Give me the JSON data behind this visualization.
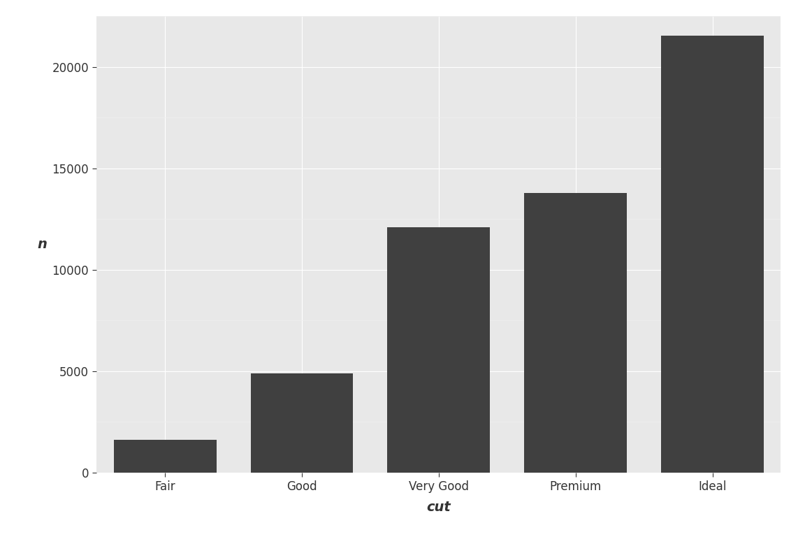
{
  "categories": [
    "Fair",
    "Good",
    "Very Good",
    "Premium",
    "Ideal"
  ],
  "values": [
    1610,
    4906,
    12082,
    13791,
    21551
  ],
  "bar_color": "#404040",
  "figure_background": "#ffffff",
  "panel_background": "#e8e8e8",
  "major_grid_color": "#ffffff",
  "minor_grid_color": "#f0f0f0",
  "xlabel": "cut",
  "ylabel": "n",
  "ylim": [
    0,
    22500
  ],
  "yticks": [
    0,
    5000,
    10000,
    15000,
    20000
  ],
  "xlabel_fontsize": 14,
  "ylabel_fontsize": 14,
  "tick_fontsize": 12,
  "bar_width": 0.75
}
